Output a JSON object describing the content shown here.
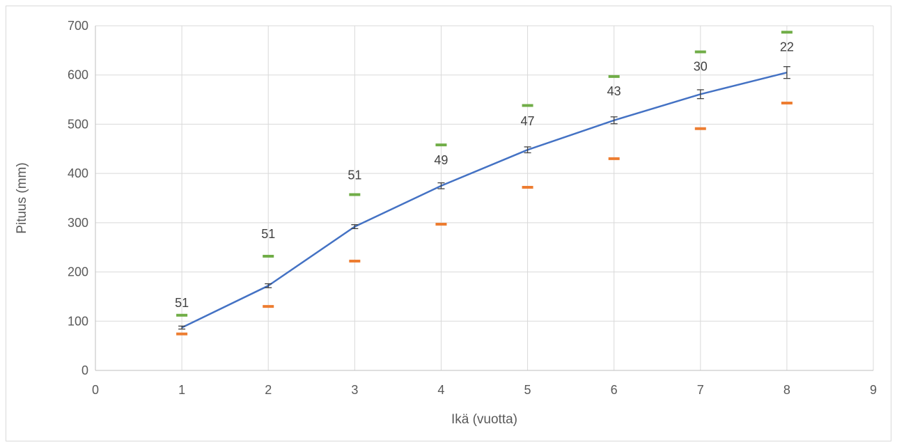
{
  "chart_data": {
    "type": "line",
    "title": "",
    "xlabel": "Ikä (vuotta)",
    "ylabel": "Pituus (mm)",
    "xlim": [
      0,
      9
    ],
    "ylim": [
      0,
      700
    ],
    "xticks": [
      0,
      1,
      2,
      3,
      4,
      5,
      6,
      7,
      8,
      9
    ],
    "yticks": [
      0,
      100,
      200,
      300,
      400,
      500,
      600,
      700
    ],
    "grid": true,
    "legend": "none",
    "series": [
      {
        "kind": "line-with-error-bars",
        "color": "#4472c4",
        "x": [
          1,
          2,
          3,
          4,
          5,
          6,
          7,
          8
        ],
        "y": [
          87,
          172,
          292,
          375,
          448,
          508,
          561,
          605
        ],
        "error": [
          3,
          4,
          4,
          6,
          6,
          7,
          9,
          12
        ]
      },
      {
        "kind": "max-marker",
        "color": "#70ad47",
        "x": [
          1,
          2,
          3,
          4,
          5,
          6,
          7,
          8
        ],
        "y": [
          112,
          232,
          357,
          458,
          538,
          597,
          647,
          687
        ]
      },
      {
        "kind": "min-marker",
        "color": "#ed7d31",
        "x": [
          1,
          2,
          3,
          4,
          5,
          6,
          7,
          8
        ],
        "y": [
          74,
          130,
          222,
          297,
          372,
          430,
          491,
          543
        ]
      }
    ],
    "data_labels": [
      {
        "x": 1,
        "y": 137,
        "text": "51"
      },
      {
        "x": 2,
        "y": 277,
        "text": "51"
      },
      {
        "x": 3,
        "y": 397,
        "text": "51"
      },
      {
        "x": 4,
        "y": 427,
        "text": "49"
      },
      {
        "x": 5,
        "y": 506,
        "text": "47"
      },
      {
        "x": 6,
        "y": 567,
        "text": "43"
      },
      {
        "x": 7,
        "y": 617,
        "text": "30"
      },
      {
        "x": 8,
        "y": 657,
        "text": "22"
      }
    ]
  }
}
